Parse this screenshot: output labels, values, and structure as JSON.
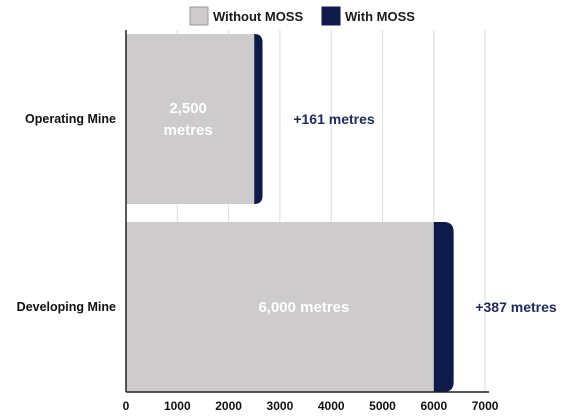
{
  "chart_data": {
    "type": "bar",
    "orientation": "horizontal",
    "stacked": true,
    "categories": [
      "Operating Mine",
      "Developing Mine"
    ],
    "series": [
      {
        "name": "Without MOSS",
        "values": [
          2500,
          6000
        ],
        "labels": [
          [
            "2,500",
            "metres"
          ],
          [
            "6,000 metres"
          ]
        ]
      },
      {
        "name": "With MOSS",
        "values": [
          161,
          387
        ],
        "labels": [
          "+161 metres",
          "+387 metres"
        ]
      }
    ],
    "xlim": [
      0,
      7000
    ],
    "xticks": [
      0,
      1000,
      2000,
      3000,
      4000,
      5000,
      6000,
      7000
    ],
    "grid": true,
    "legend": "top-center",
    "colors": {
      "without_moss": "#cdcbcb",
      "with_moss": "#0d1a4a",
      "delta_text": "#1c2a5e",
      "grid": "#dcdcdc",
      "axis": "#222222"
    }
  }
}
